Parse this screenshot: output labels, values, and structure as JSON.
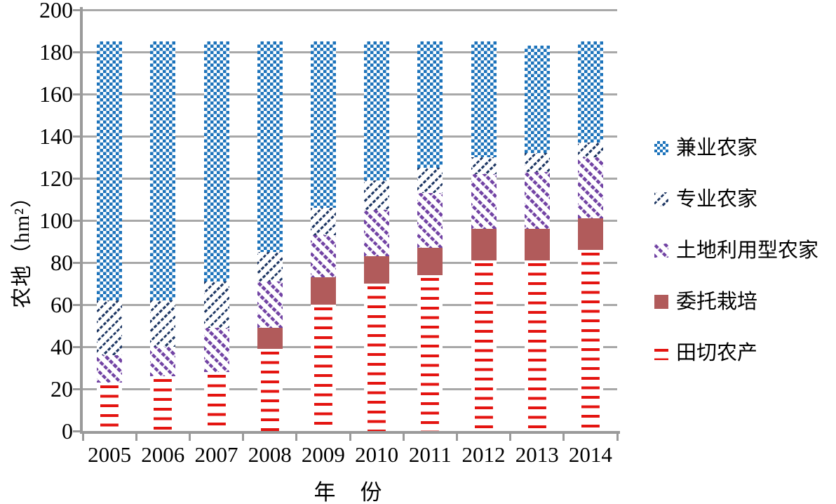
{
  "chart_data": {
    "type": "bar",
    "stacked": true,
    "xlabel": "年　份",
    "ylabel": "农地（hm²）",
    "ylim": [
      0,
      200
    ],
    "yticks": [
      0,
      20,
      40,
      60,
      80,
      100,
      120,
      140,
      160,
      180,
      200
    ],
    "grid": "horizontal",
    "legend_position": "right",
    "categories": [
      "2005",
      "2006",
      "2007",
      "2008",
      "2009",
      "2010",
      "2011",
      "2012",
      "2013",
      "2014"
    ],
    "series": [
      {
        "name": "田切农产",
        "color": "#E41410",
        "pattern": "horizontal-dash",
        "values": [
          23,
          26,
          28,
          39,
          60,
          70,
          74,
          81,
          81,
          86
        ]
      },
      {
        "name": "委托栽培",
        "color": "#B15B5B",
        "pattern": "solid",
        "values": [
          0,
          0,
          0,
          10,
          13,
          13,
          13,
          15,
          15,
          15
        ]
      },
      {
        "name": "土地利用型农家",
        "color": "#7243A4",
        "pattern": "diagonal-down-dash",
        "values": [
          13,
          14,
          21,
          22,
          20,
          22,
          26,
          26,
          27,
          29
        ]
      },
      {
        "name": "专业农家",
        "color": "#1F3864",
        "pattern": "diagonal-up-dash",
        "values": [
          26,
          22,
          22,
          14,
          13,
          14,
          12,
          8,
          9,
          7
        ]
      },
      {
        "name": "兼业农家",
        "color": "#1C73BB",
        "pattern": "checker",
        "values": [
          123,
          123,
          114,
          100,
          79,
          66,
          60,
          55,
          51,
          48
        ]
      }
    ],
    "legend_order_top_to_bottom": [
      "兼业农家",
      "专业农家",
      "土地利用型农家",
      "委托栽培",
      "田切农产"
    ]
  },
  "colors": {
    "gridline": "#A8A8A8",
    "axis": "#9A9A9A",
    "text": "#000000",
    "plot_background": "#FFFFFF"
  }
}
